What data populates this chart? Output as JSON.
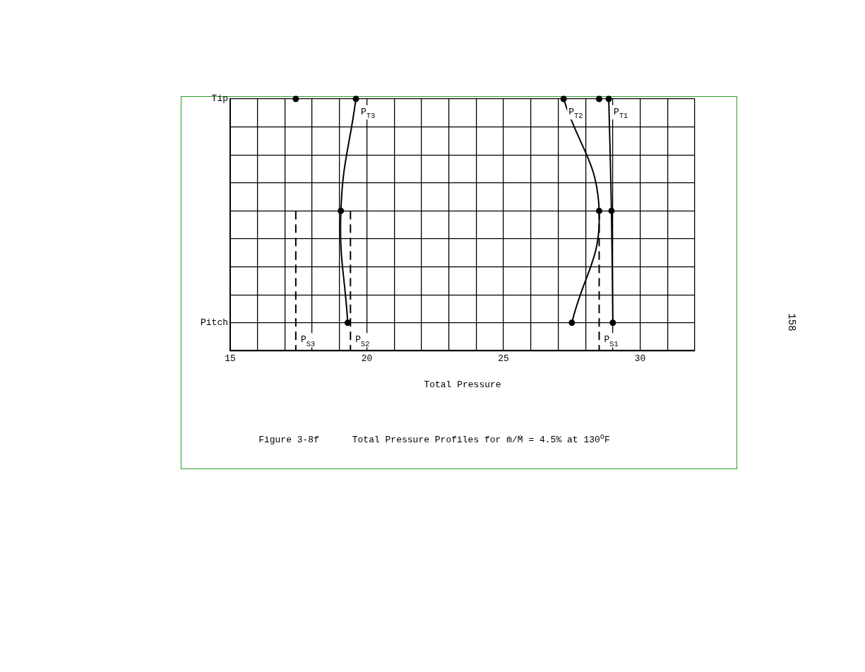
{
  "chart_data": {
    "type": "line",
    "orientation": "horizontal",
    "title": "Figure 3-8f      Total Pressure Profiles for ṁ/Ṁ = 4.5% at 130$^{o}$F",
    "xlabel": "Total Pressure",
    "annotations": [
      "158"
    ],
    "categories": [
      "Tip",
      null,
      null,
      null,
      null,
      null,
      null,
      null,
      "Pitch",
      null
    ],
    "xlim": [
      15,
      32
    ],
    "xticks": [
      15,
      {
        "value": 16,
        "label": null
      },
      {
        "value": 17,
        "label": null
      },
      {
        "value": 18,
        "label": null
      },
      {
        "value": 19,
        "label": null
      },
      20,
      {
        "value": 21,
        "label": null
      },
      {
        "value": 22,
        "label": null
      },
      {
        "value": 23,
        "label": null
      },
      {
        "value": 24,
        "label": null
      },
      25,
      {
        "value": 26,
        "label": null
      },
      {
        "value": 27,
        "label": null
      },
      {
        "value": 28,
        "label": null
      },
      {
        "value": 29,
        "label": null
      },
      30,
      {
        "value": 31,
        "label": null
      },
      {
        "value": 32,
        "label": null
      }
    ],
    "grid": true,
    "series": [
      {
        "name": "P$_{T3}$",
        "color": "#000000",
        "values": [
          19.6,
          null,
          null,
          null,
          19.05,
          null,
          null,
          null,
          19.3,
          null
        ],
        "marker": "circle",
        "line_style": "solid"
      },
      {
        "name": "P$_{T2}$",
        "color": "#000000",
        "values": [
          27.2,
          null,
          null,
          null,
          28.5,
          null,
          null,
          null,
          27.5,
          null
        ],
        "marker": "circle",
        "line_style": "solid"
      },
      {
        "name": "P$_{T1}$",
        "color": "#000000",
        "values": [
          28.85,
          null,
          null,
          null,
          28.95,
          null,
          null,
          null,
          29.0,
          null
        ],
        "marker": "circle",
        "line_style": "solid"
      },
      {
        "name": "P$_{S3}$",
        "color": "#000000",
        "values": [
          null,
          null,
          null,
          null,
          17.4,
          null,
          null,
          null,
          null,
          17.4
        ],
        "marker": "none",
        "line_style": "dashed"
      },
      {
        "name": "P$_{S2}$",
        "color": "#000000",
        "values": [
          null,
          null,
          null,
          null,
          19.4,
          null,
          null,
          null,
          null,
          19.4
        ],
        "marker": "none",
        "line_style": "dashed"
      },
      {
        "name": "P$_{S1}$",
        "color": "#000000",
        "values": [
          null,
          null,
          null,
          null,
          28.5,
          null,
          null,
          null,
          null,
          28.5
        ],
        "marker": "none",
        "line_style": "dashed"
      },
      {
        "type": "scatter",
        "color": "#000000",
        "values": [
          17.4,
          null,
          null,
          null,
          null,
          null,
          null,
          null,
          null,
          null
        ],
        "marker": "circle"
      },
      {
        "type": "scatter",
        "color": "#000000",
        "values": [
          28.5,
          null,
          null,
          null,
          null,
          null,
          null,
          null,
          null,
          null
        ],
        "marker": "circle"
      }
    ]
  }
}
